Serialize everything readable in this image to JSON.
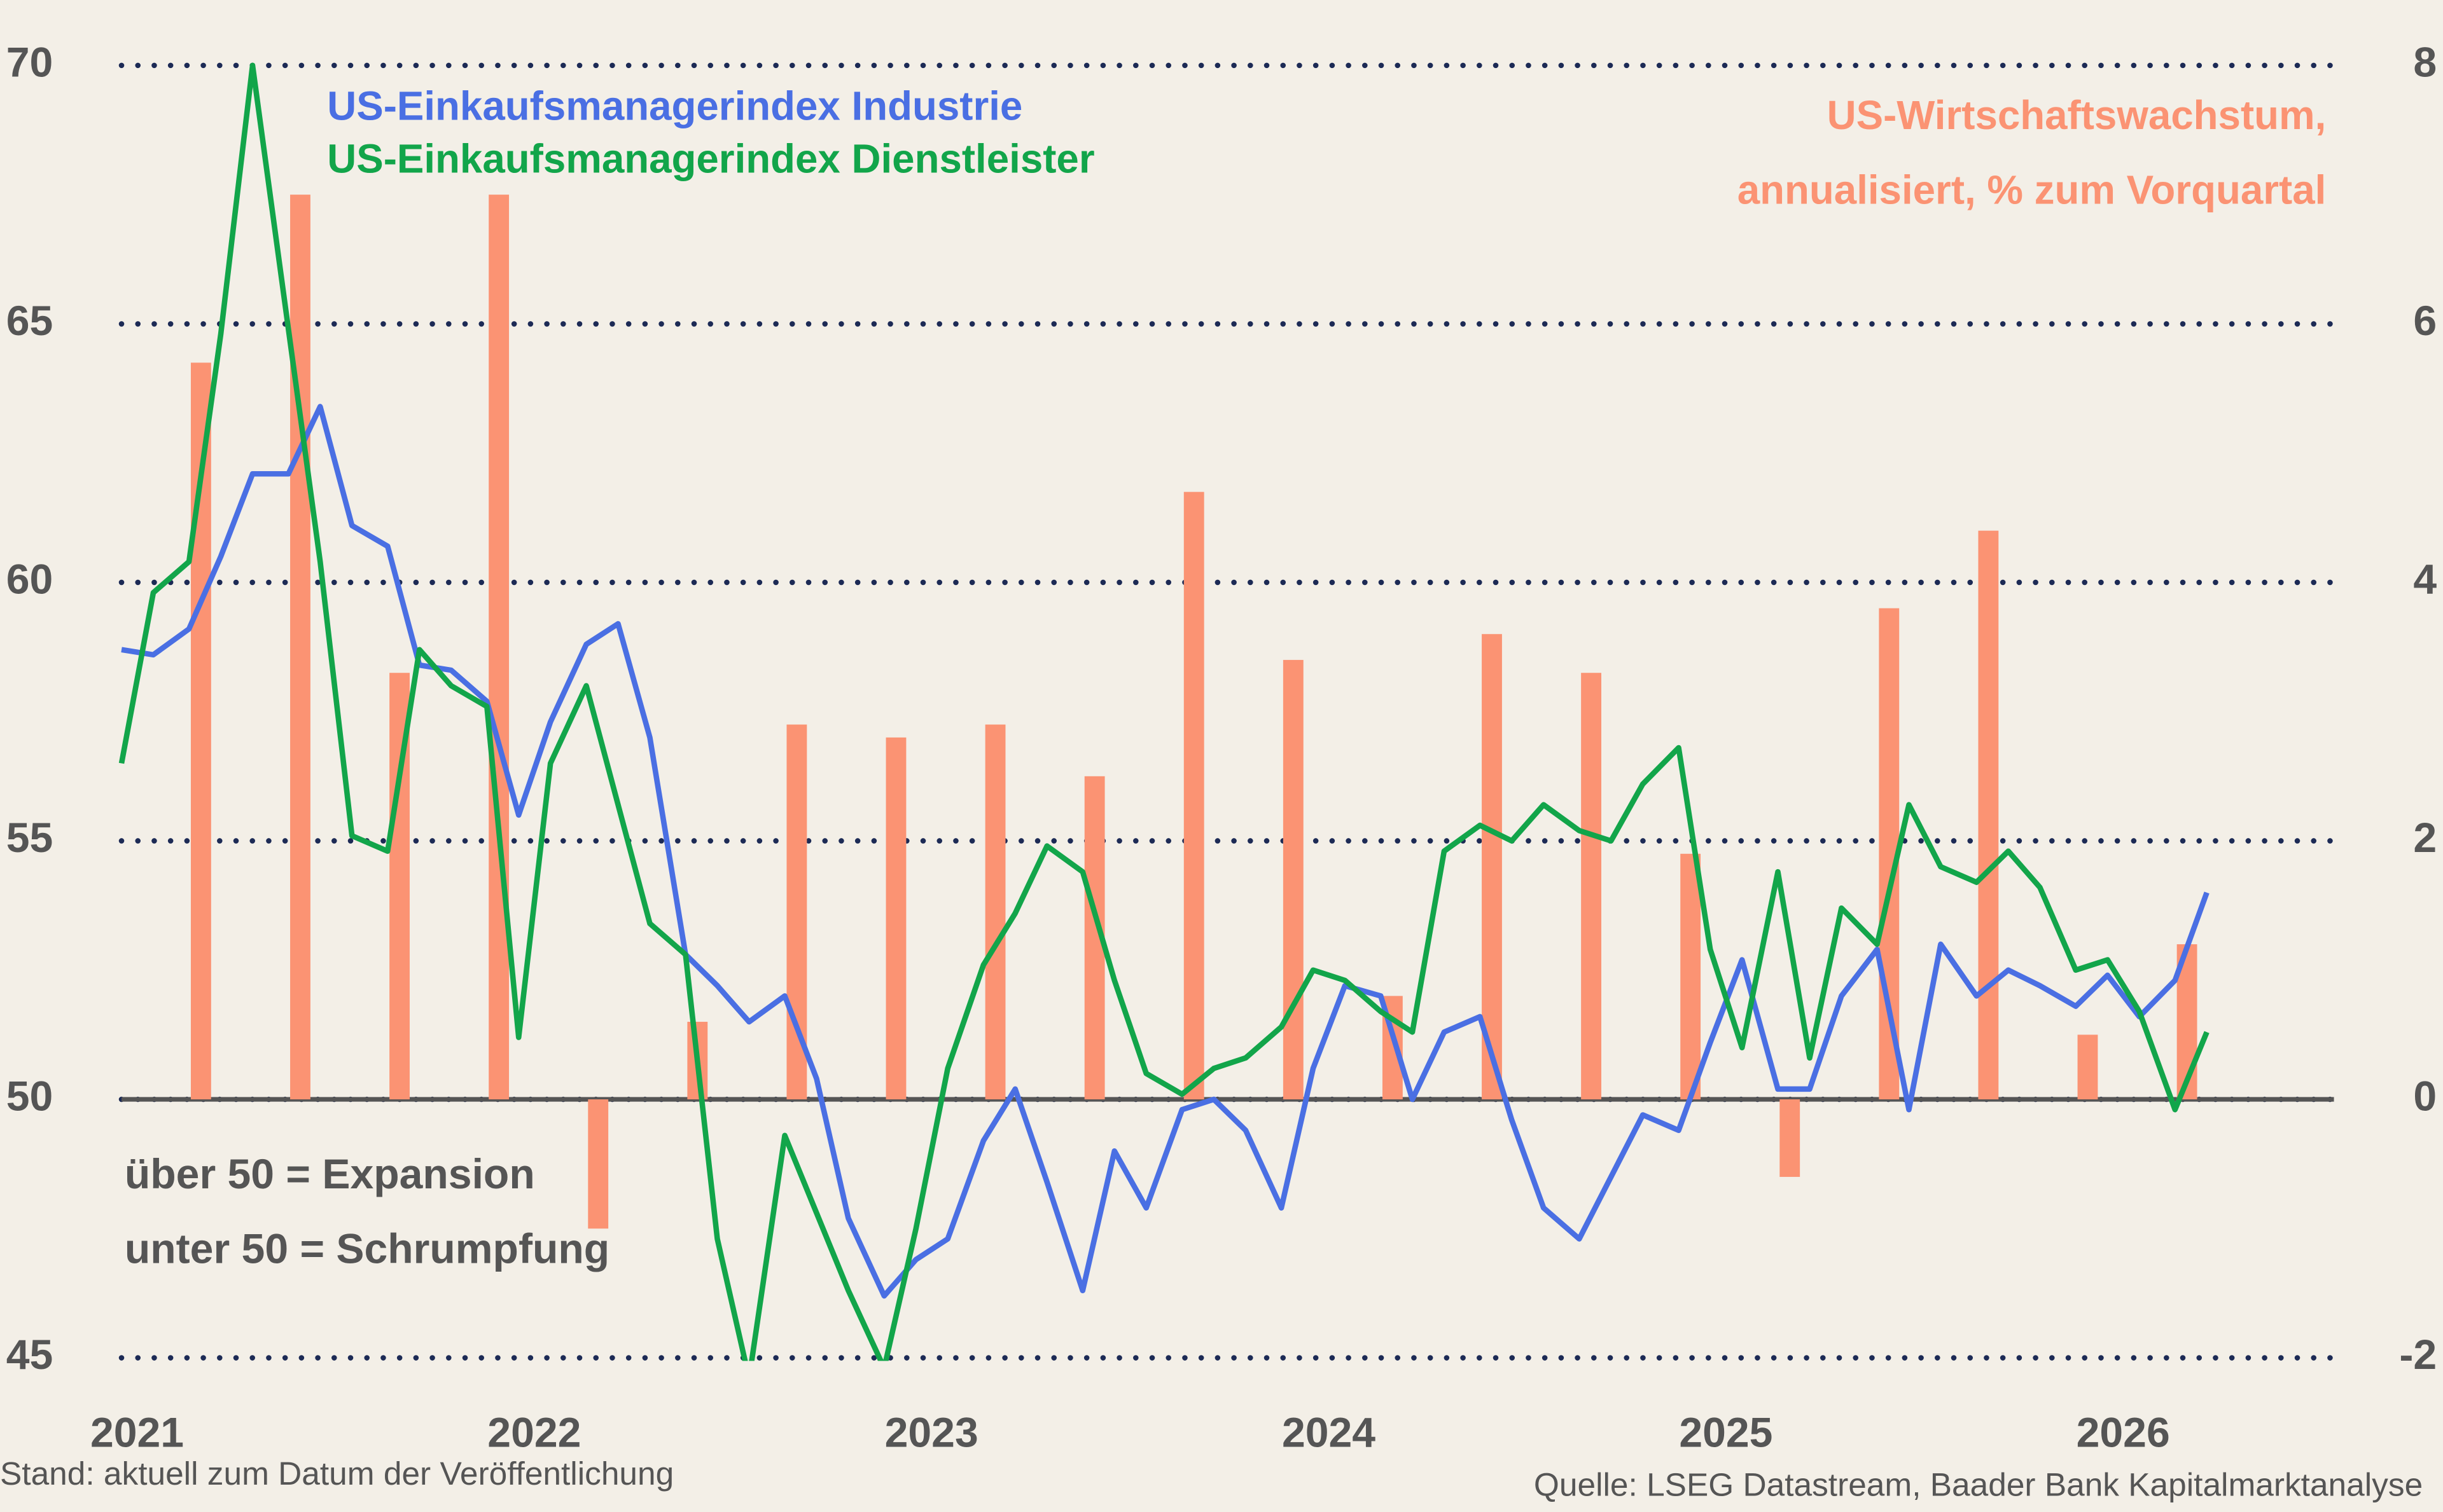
{
  "chart_data": {
    "type": "combo",
    "annotations": [
      "über 50 = Expansion",
      "unter 50 = Schrumpfung"
    ],
    "footnote": "Stand: aktuell zum Datum der Veröffentlichung",
    "source": "Quelle: LSEG Datastream, Baader Bank Kapitalmarktanalyse",
    "xlim": [
      2021,
      2026.57
    ],
    "xticks": [
      2021,
      2022,
      2023,
      2024,
      2025,
      2026
    ],
    "ylim": [
      45,
      70
    ],
    "yticks": [
      45,
      50,
      55,
      60,
      65,
      70
    ],
    "y2lim": [
      -2,
      8
    ],
    "y2ticks": [
      -2,
      0,
      2,
      4,
      6,
      8
    ],
    "grid": true,
    "baseline": 50,
    "series": [
      {
        "name": "US-Einkaufsmanagerindex Industrie",
        "type": "line",
        "color": "#4a6fe3",
        "x": [
          2021,
          2021.08,
          2021.17,
          2021.25,
          2021.33,
          2021.42,
          2021.5,
          2021.58,
          2021.67,
          2021.75,
          2021.83,
          2021.92,
          2022,
          2022.08,
          2022.17,
          2022.25,
          2022.33,
          2022.42,
          2022.5,
          2022.58,
          2022.67,
          2022.75,
          2022.83,
          2022.92,
          2023,
          2023.08,
          2023.17,
          2023.25,
          2023.33,
          2023.42,
          2023.5,
          2023.58,
          2023.67,
          2023.75,
          2023.83,
          2023.92,
          2024,
          2024.08,
          2024.17,
          2024.25,
          2024.33,
          2024.42,
          2024.5,
          2024.58,
          2024.67,
          2024.75,
          2024.83,
          2024.92,
          2025,
          2025.08,
          2025.17,
          2025.25,
          2025.33,
          2025.42,
          2025.5,
          2025.58,
          2025.67,
          2025.75,
          2025.83,
          2025.92,
          2026,
          2026.08,
          2026.17,
          2026.25
        ],
        "values": [
          58.7,
          58.6,
          59.1,
          60.5,
          62.1,
          62.1,
          63.4,
          61.1,
          60.7,
          58.4,
          58.3,
          57.7,
          55.5,
          57.3,
          58.8,
          59.2,
          57.0,
          52.8,
          52.2,
          51.5,
          52.0,
          50.4,
          47.7,
          46.2,
          46.9,
          47.3,
          49.2,
          50.2,
          48.4,
          46.3,
          49.0,
          47.9,
          49.8,
          50.0,
          49.4,
          47.9,
          50.6,
          52.2,
          52.0,
          50.0,
          51.3,
          51.6,
          49.6,
          47.9,
          47.3,
          48.5,
          49.7,
          49.4,
          51.1,
          52.7,
          50.2,
          50.2,
          52.0,
          52.9,
          49.8,
          53.0,
          52.0,
          52.5,
          52.2,
          51.8,
          52.4,
          51.6,
          52.3,
          54.0
        ]
      },
      {
        "name": "US-Einkaufsmanagerindex Dienstleister",
        "type": "line",
        "color": "#12a54a",
        "x": [
          2021,
          2021.08,
          2021.17,
          2021.25,
          2021.33,
          2021.42,
          2021.5,
          2021.58,
          2021.67,
          2021.75,
          2021.83,
          2021.92,
          2022,
          2022.08,
          2022.17,
          2022.25,
          2022.33,
          2022.42,
          2022.5,
          2022.58,
          2022.67,
          2022.75,
          2022.83,
          2022.92,
          2023,
          2023.08,
          2023.17,
          2023.25,
          2023.33,
          2023.42,
          2023.5,
          2023.58,
          2023.67,
          2023.75,
          2023.83,
          2023.92,
          2024,
          2024.08,
          2024.17,
          2024.25,
          2024.33,
          2024.42,
          2024.5,
          2024.58,
          2024.67,
          2024.75,
          2024.83,
          2024.92,
          2025,
          2025.08,
          2025.17,
          2025.25,
          2025.33,
          2025.42,
          2025.5,
          2025.58,
          2025.67,
          2025.75,
          2025.83,
          2025.92,
          2026,
          2026.08,
          2026.17,
          2026.25
        ],
        "values": [
          56.5,
          59.8,
          60.4,
          64.8,
          70.0,
          64.9,
          60.4,
          55.1,
          54.8,
          58.7,
          58.0,
          57.6,
          51.2,
          56.5,
          58.0,
          55.7,
          53.4,
          52.8,
          47.3,
          44.6,
          49.3,
          47.8,
          46.3,
          44.8,
          47.5,
          50.6,
          52.6,
          53.6,
          54.9,
          54.4,
          52.3,
          50.5,
          50.1,
          50.6,
          50.8,
          51.4,
          52.5,
          52.3,
          51.7,
          51.3,
          54.8,
          55.3,
          55.0,
          55.7,
          55.2,
          55.0,
          56.1,
          56.8,
          52.9,
          51.0,
          54.4,
          50.8,
          53.7,
          53.0,
          55.7,
          54.5,
          54.2,
          54.8,
          54.1,
          52.5,
          52.7,
          51.7,
          49.8,
          51.3
        ]
      },
      {
        "name": "US-Wirtschaftswachstum, annualisiert, % zum Vorquartal",
        "type": "bar",
        "axis": "y2",
        "color": "#fb9373",
        "x": [
          2021.2,
          2021.45,
          2021.7,
          2021.95,
          2022.2,
          2022.45,
          2022.7,
          2022.95,
          2023.2,
          2023.45,
          2023.7,
          2023.95,
          2024.2,
          2024.45,
          2024.7,
          2024.95,
          2025.2,
          2025.45,
          2025.7,
          2025.95,
          2026.2
        ],
        "values": [
          5.7,
          7.0,
          3.3,
          7.0,
          -1.0,
          0.6,
          2.9,
          2.8,
          2.9,
          2.5,
          4.7,
          3.4,
          0.8,
          3.6,
          3.3,
          1.9,
          -0.6,
          3.8,
          4.4,
          0.5,
          1.2
        ]
      }
    ]
  }
}
